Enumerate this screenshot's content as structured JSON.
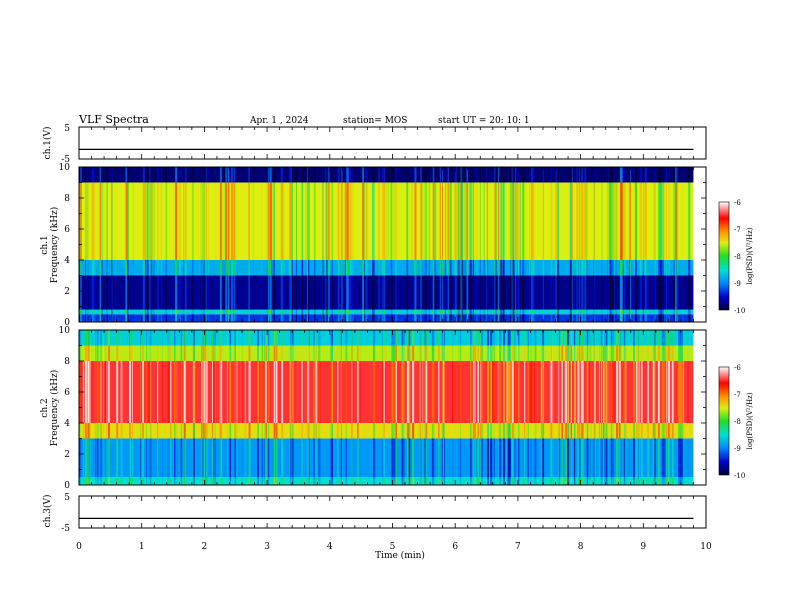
{
  "header": {
    "title": "VLF Spectra",
    "date": "Apr. 1 , 2024",
    "station": "station= MOS",
    "start": "start UT = 20: 10: 1"
  },
  "colors": {
    "spectrogram_palette": [
      "#000033",
      "#0000cc",
      "#0088ff",
      "#00e0d0",
      "#22dd22",
      "#ddee11",
      "#ff9900",
      "#ff0000",
      "#ffffff"
    ],
    "line": "#000000"
  },
  "chart_data": [
    {
      "type": "line",
      "name": "ch1-waveform",
      "ylabel": "ch.1(V)",
      "ylim": [
        -5,
        5
      ],
      "yticks": [
        "5",
        "-5"
      ],
      "x": [
        0,
        1,
        2,
        3,
        4,
        5,
        6,
        7,
        8,
        9,
        9.8
      ],
      "values": [
        -2,
        -2,
        -2,
        -2,
        -2,
        -2,
        -2,
        -2,
        -2,
        -2,
        -2
      ]
    },
    {
      "type": "heatmap",
      "name": "ch1-spectrogram",
      "xlim": [
        0,
        10
      ],
      "ylim": [
        0,
        10
      ],
      "yticks": [
        "0",
        "2",
        "4",
        "6",
        "8",
        "10"
      ],
      "ylabel_lines": [
        "ch.1",
        "Frequency (kHz)"
      ],
      "data_end_min": 9.8,
      "bands": [
        {
          "from_khz": 0,
          "to_khz": 0.5,
          "level": -9.3
        },
        {
          "from_khz": 0.5,
          "to_khz": 0.8,
          "level": -8.6
        },
        {
          "from_khz": 0.8,
          "to_khz": 3.0,
          "level": -9.7
        },
        {
          "from_khz": 3.0,
          "to_khz": 4.0,
          "level": -8.8
        },
        {
          "from_khz": 4.0,
          "to_khz": 9.0,
          "level": -7.5
        },
        {
          "from_khz": 9.0,
          "to_khz": 10.0,
          "level": -9.8
        }
      ],
      "colorbar": {
        "ticks": [
          "-6",
          "-7",
          "-8",
          "-9",
          "-10"
        ],
        "label": "log(PSD)(V²/Hz)",
        "range": [
          -10,
          -6
        ]
      }
    },
    {
      "type": "heatmap",
      "name": "ch2-spectrogram",
      "xlim": [
        0,
        10
      ],
      "ylim": [
        0,
        10
      ],
      "yticks": [
        "0",
        "2",
        "4",
        "6",
        "8",
        "10"
      ],
      "ylabel_lines": [
        "ch.2",
        "Frequency (kHz)"
      ],
      "data_end_min": 9.8,
      "bands": [
        {
          "from_khz": 0,
          "to_khz": 0.5,
          "level": -8.5
        },
        {
          "from_khz": 0.5,
          "to_khz": 3.0,
          "level": -8.9
        },
        {
          "from_khz": 3.0,
          "to_khz": 4.0,
          "level": -7.4
        },
        {
          "from_khz": 4.0,
          "to_khz": 8.0,
          "level": -6.4
        },
        {
          "from_khz": 8.0,
          "to_khz": 9.0,
          "level": -7.6
        },
        {
          "from_khz": 9.0,
          "to_khz": 10.0,
          "level": -8.6
        }
      ],
      "colorbar": {
        "ticks": [
          "-6",
          "-7",
          "-8",
          "-9",
          "-10"
        ],
        "label": "log(PSD)(V²/Hz)",
        "range": [
          -10,
          -6
        ]
      }
    },
    {
      "type": "line",
      "name": "ch3-waveform",
      "ylabel": "ch.3(V)",
      "ylim": [
        -5,
        5
      ],
      "yticks": [
        "5",
        "-5"
      ],
      "xticks": [
        "0",
        "1",
        "2",
        "3",
        "4",
        "5",
        "6",
        "7",
        "8",
        "9",
        "10"
      ],
      "xlabel": "Time (min)",
      "xlim": [
        0,
        10
      ],
      "x": [
        0,
        1,
        2,
        3,
        4,
        5,
        6,
        7,
        8,
        9,
        9.8
      ],
      "values": [
        -2,
        -2,
        -2,
        -2,
        -2,
        -2,
        -2,
        -2,
        -2,
        -2,
        -2
      ]
    }
  ]
}
